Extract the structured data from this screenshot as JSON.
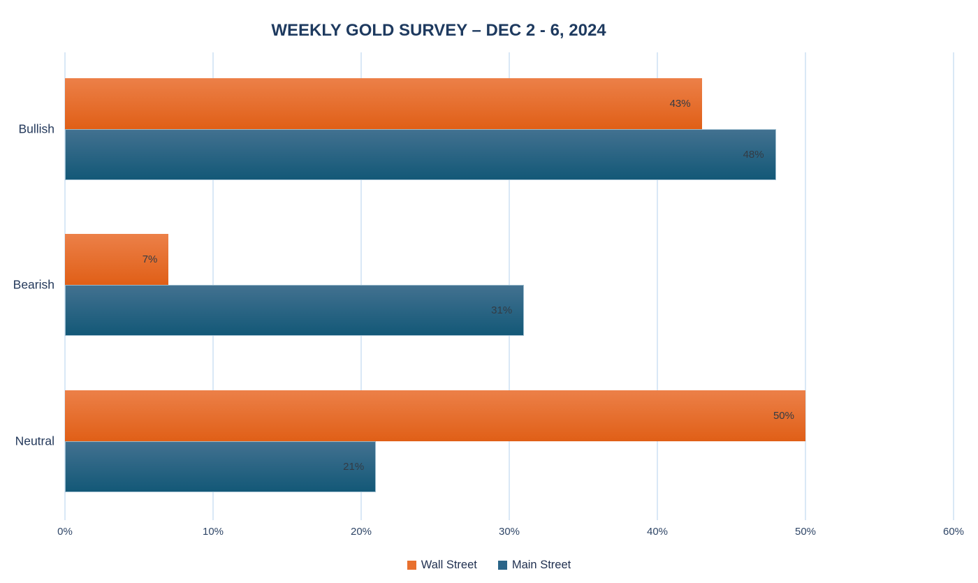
{
  "chart_data": {
    "type": "bar",
    "orientation": "horizontal",
    "title": "WEEKLY GOLD SURVEY – DEC 2 - 6, 2024",
    "categories": [
      "Bullish",
      "Bearish",
      "Neutral"
    ],
    "series": [
      {
        "name": "Wall Street",
        "values": [
          43,
          7,
          50
        ],
        "value_labels": [
          "43%",
          "7%",
          "50%"
        ],
        "color": "#E8702E",
        "gradient_top": "#EC8048",
        "gradient_bottom": "#E05F17"
      },
      {
        "name": "Main Street",
        "values": [
          48,
          31,
          21
        ],
        "value_labels": [
          "48%",
          "31%",
          "21%"
        ],
        "color": "#2B6589",
        "gradient_top": "#427190",
        "gradient_bottom": "#135877"
      }
    ],
    "xlim": [
      0,
      60
    ],
    "x_tick_step": 10,
    "x_ticks": [
      "0%",
      "10%",
      "20%",
      "30%",
      "40%",
      "50%",
      "60%"
    ],
    "grid": true,
    "legend_position": "bottom",
    "colors": {
      "background": "#FFFFFF",
      "gridline": "#D9E8F6",
      "title_text": "#1E3A5F",
      "category_text": "#24395B",
      "tick_text": "#2E4566",
      "value_text": "#333B44"
    }
  }
}
